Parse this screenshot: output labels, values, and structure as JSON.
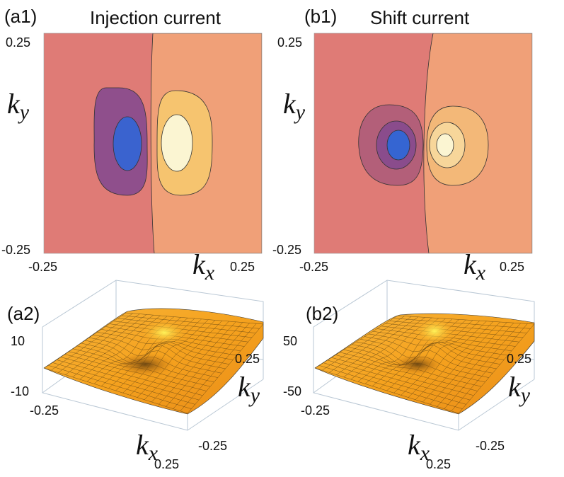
{
  "chart_data": [
    {
      "id": "a1",
      "type": "heatmap",
      "panel_label": "(a1)",
      "title": "Injection current",
      "xlabel_var": "k",
      "xlabel_sub": "x",
      "ylabel_var": "k",
      "ylabel_sub": "y",
      "xlim": [
        -0.25,
        0.25
      ],
      "ylim": [
        -0.25,
        0.25
      ],
      "xtick_labels": [
        "-0.25",
        "0.25"
      ],
      "ytick_labels": [
        "-0.25",
        "0.25"
      ],
      "model": {
        "center": [
          0.0,
          0.0
        ],
        "sx": 0.06,
        "sy": 0.09,
        "max": 1.0,
        "min": -1.0
      },
      "contour_levels": [
        -0.65,
        -0.15,
        0.0,
        0.15,
        0.65
      ],
      "colors": {
        "negative_outer": "#df7b76",
        "negative_mid": "#8f4f8c",
        "negative_core": "#3a63cf",
        "positive_outer": "#f0a078",
        "positive_mid": "#f6c46f",
        "positive_core": "#fbf5d2"
      }
    },
    {
      "id": "b1",
      "type": "heatmap",
      "panel_label": "(b1)",
      "title": "Shift current",
      "xlabel_var": "k",
      "xlabel_sub": "x",
      "ylabel_var": "k",
      "ylabel_sub": "y",
      "xlim": [
        -0.25,
        0.25
      ],
      "ylim": [
        -0.25,
        0.25
      ],
      "xtick_labels": [
        "-0.25",
        "0.25"
      ],
      "ytick_labels": [
        "-0.25",
        "0.25"
      ],
      "model": {
        "center": [
          0.0,
          0.0
        ],
        "sx": 0.05,
        "sy": 0.05,
        "max": 1.0,
        "min": -1.0
      },
      "contour_levels": [
        -0.75,
        -0.35,
        -0.08,
        0.0,
        0.08,
        0.35,
        0.75
      ],
      "colors": {
        "negative_outer": "#df7b76",
        "negative_mid": "#b35f79",
        "negative_inner": "#8a4c8c",
        "negative_core": "#3565d2",
        "positive_outer": "#f0a078",
        "positive_mid": "#f3b878",
        "positive_inner": "#f7d69a",
        "positive_core": "#fbf5d2"
      }
    },
    {
      "id": "a2",
      "type": "surface3d",
      "panel_label": "(a2)",
      "zlim": [
        -10,
        10
      ],
      "ztick_labels": [
        "10",
        "-10"
      ],
      "xtick_labels": [
        "-0.25",
        "0.25"
      ],
      "ytick_labels": [
        "0.25",
        "-0.25"
      ],
      "xlabel_var": "k",
      "xlabel_sub": "x",
      "ylabel_var": "k",
      "ylabel_sub": "y",
      "surface_color": "#f5a21e"
    },
    {
      "id": "b2",
      "type": "surface3d",
      "panel_label": "(b2)",
      "zlim": [
        -50,
        50
      ],
      "ztick_labels": [
        "50",
        "-50"
      ],
      "xtick_labels": [
        "-0.25",
        "0.25"
      ],
      "ytick_labels": [
        "0.25",
        "-0.25"
      ],
      "xlabel_var": "k",
      "xlabel_sub": "x",
      "ylabel_var": "k",
      "ylabel_sub": "y",
      "surface_color": "#f5a21e"
    }
  ]
}
